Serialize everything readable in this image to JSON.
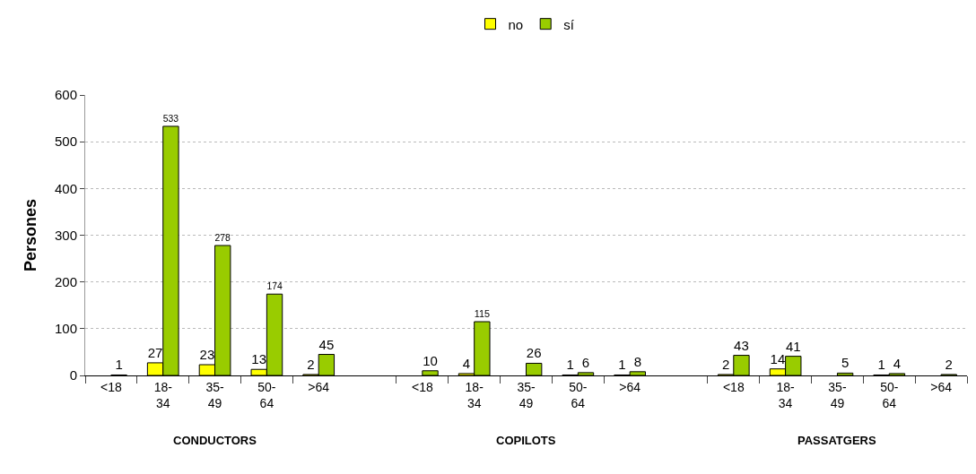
{
  "chart_data": {
    "type": "bar",
    "ylabel": "Persones",
    "categories": [
      "<18",
      "18-34",
      "35-49",
      "50-64",
      ">64",
      null,
      "<18",
      "18-34",
      "35-49",
      "50-64",
      ">64",
      null,
      "<18",
      "18-34",
      "35-49",
      "50-64",
      ">64"
    ],
    "series": [
      {
        "name": "no",
        "color": "#ffff00",
        "values": [
          null,
          27,
          23,
          13,
          2,
          null,
          null,
          4,
          null,
          1,
          1,
          null,
          2,
          14,
          null,
          1,
          null
        ]
      },
      {
        "name": "sí",
        "color": "#99cc00",
        "values": [
          1,
          533,
          278,
          174,
          45,
          null,
          10,
          115,
          26,
          6,
          8,
          null,
          43,
          41,
          5,
          4,
          2
        ]
      }
    ],
    "annotations": [
      "CONDUCTORS",
      "COPILOTS",
      "PASSATGERS"
    ],
    "ylim": [
      0,
      600
    ],
    "yticks": [
      0,
      100,
      200,
      300,
      400,
      500,
      600
    ],
    "grid": "y",
    "legend": "top",
    "data_labels": true
  }
}
